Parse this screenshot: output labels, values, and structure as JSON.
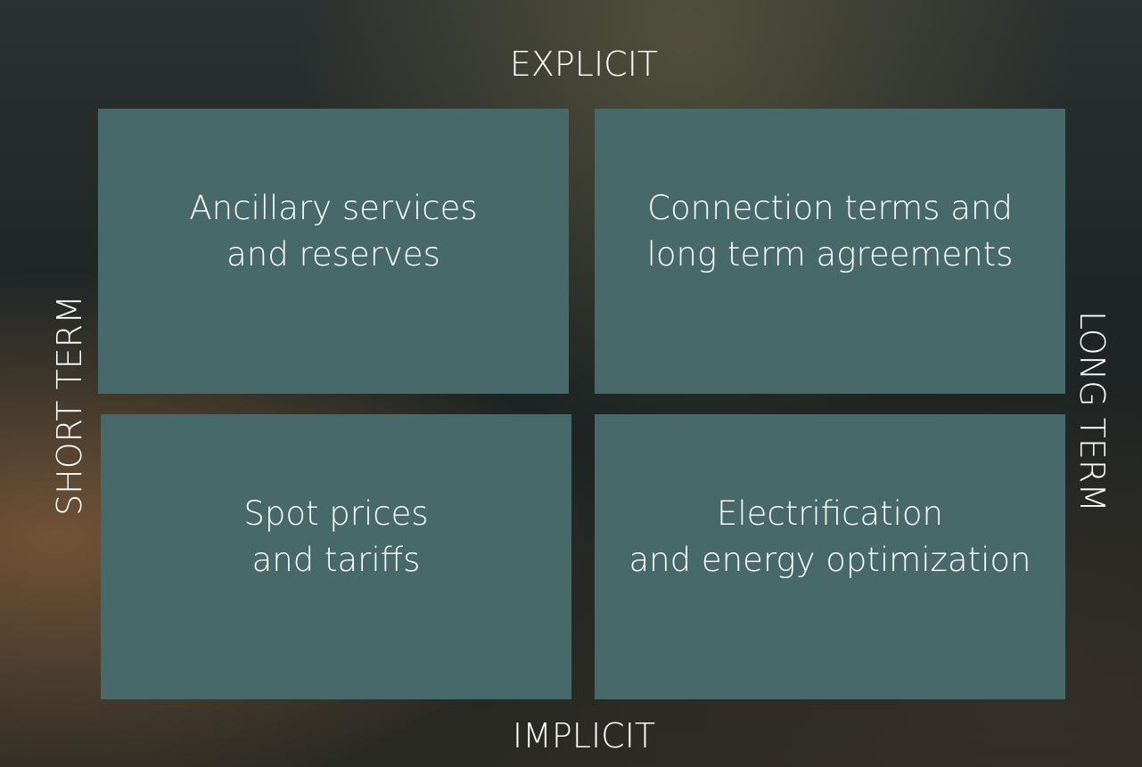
{
  "axes": {
    "top": "EXPLICIT",
    "bottom": "IMPLICIT",
    "left": "SHORT TERM",
    "right": "LONG TERM"
  },
  "quadrants": [
    {
      "lines": [
        "Ancillary services",
        "and reserves"
      ]
    },
    {
      "lines": [
        "Connection terms and",
        "long term agreements"
      ]
    },
    {
      "lines": [
        "Spot prices",
        "and tariffs"
      ]
    },
    {
      "lines": [
        "Electrification",
        "and energy optimization"
      ]
    }
  ]
}
